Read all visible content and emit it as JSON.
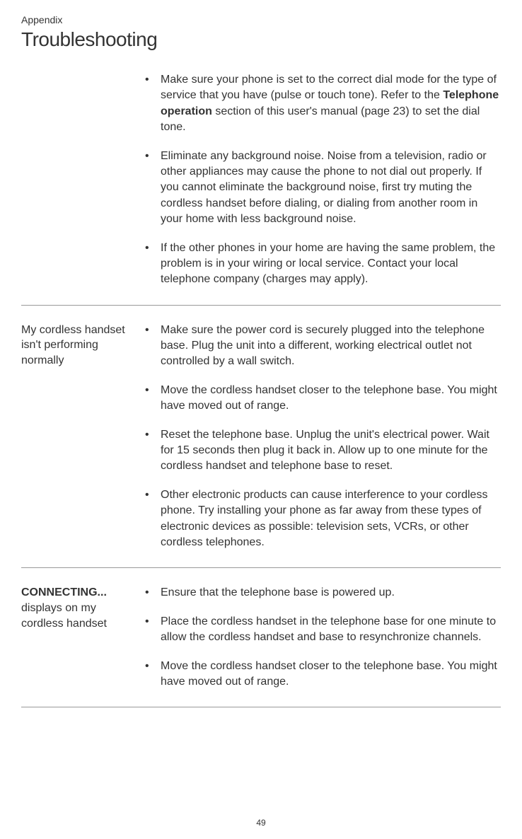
{
  "header": {
    "section_label": "Appendix",
    "title": "Troubleshooting"
  },
  "sections": [
    {
      "problem": "",
      "items": [
        {
          "pre": "Make sure your phone is set to the correct dial mode for the type of service that you have (pulse or touch tone). Refer to the ",
          "bold": "Telephone operation",
          "post": " section of this user's manual (page 23) to set the dial tone."
        },
        {
          "text": "Eliminate any background noise. Noise from a television, radio or other appliances may cause the phone to not dial out properly. If you cannot eliminate the background noise, first try muting the cordless handset before dialing, or dialing from another room in your home with less background noise."
        },
        {
          "text": "If the other phones in your home are having the same problem, the problem is in your wiring or local service. Contact your local telephone company (charges may apply)."
        }
      ]
    },
    {
      "problem": "My cordless handset isn't performing normally",
      "items": [
        {
          "text": "Make sure the power cord is securely plugged into the telephone base. Plug the unit into a different, working electrical outlet not controlled by a wall switch."
        },
        {
          "text": "Move the cordless handset closer to the telephone base. You might have moved out of range."
        },
        {
          "text": "Reset the telephone base. Unplug the unit's electrical power. Wait for 15 seconds then plug it back in. Allow up to one minute for the cordless handset and telephone base to reset."
        },
        {
          "text": "Other electronic products can cause interference to your cordless phone. Try installing your phone as far away from these types of electronic devices as possible: television sets, VCRs, or other cordless telephones."
        }
      ]
    },
    {
      "problem_bold": "CONNECTING...",
      "problem_rest": " displays on my cordless handset",
      "items": [
        {
          "text": "Ensure that the telephone base is powered up."
        },
        {
          "text": "Place the cordless handset in the telephone base for one minute to allow the cordless handset and base to resynchronize channels."
        },
        {
          "text": "Move the cordless handset closer to the telephone base. You might have moved out of range."
        }
      ]
    }
  ],
  "page_number": "49",
  "bullet_char": "•"
}
